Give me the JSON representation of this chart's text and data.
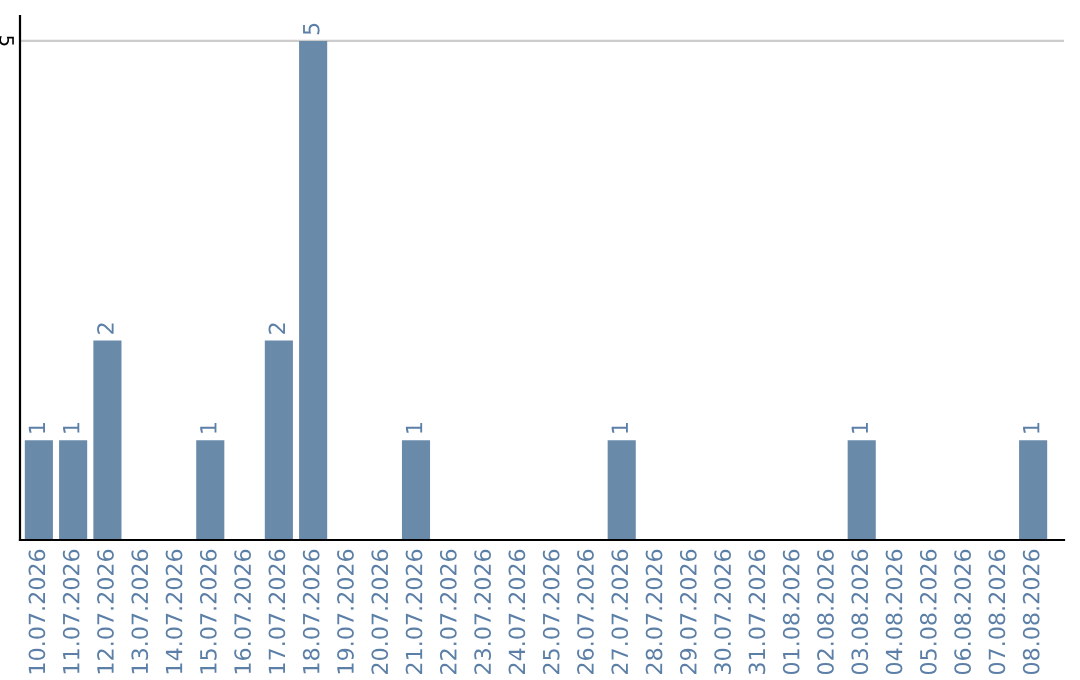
{
  "chart_data": {
    "type": "bar",
    "categories": [
      "10.07.2026",
      "11.07.2026",
      "12.07.2026",
      "13.07.2026",
      "14.07.2026",
      "15.07.2026",
      "16.07.2026",
      "17.07.2026",
      "18.07.2026",
      "19.07.2026",
      "20.07.2026",
      "21.07.2026",
      "22.07.2026",
      "23.07.2026",
      "24.07.2026",
      "25.07.2026",
      "26.07.2026",
      "27.07.2026",
      "28.07.2026",
      "29.07.2026",
      "30.07.2026",
      "31.07.2026",
      "01.08.2026",
      "02.08.2026",
      "03.08.2026",
      "04.08.2026",
      "05.08.2026",
      "06.08.2026",
      "07.08.2026",
      "08.08.2026"
    ],
    "values": [
      1,
      1,
      2,
      0,
      0,
      1,
      0,
      2,
      5,
      0,
      0,
      1,
      0,
      0,
      0,
      0,
      0,
      1,
      0,
      0,
      0,
      0,
      0,
      0,
      1,
      0,
      0,
      0,
      0,
      1
    ],
    "value_labels": [
      "1",
      "1",
      "2",
      null,
      null,
      "1",
      null,
      "2",
      "5",
      null,
      null,
      "1",
      null,
      null,
      null,
      null,
      null,
      "1",
      null,
      null,
      null,
      null,
      null,
      null,
      "1",
      null,
      null,
      null,
      null,
      "1"
    ],
    "color": "#6a8aaa",
    "ylim": [
      0,
      5.25
    ],
    "yticks": [
      5
    ],
    "grid": "y"
  }
}
